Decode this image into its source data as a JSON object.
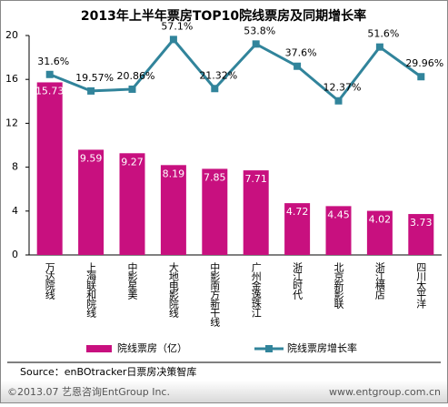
{
  "chart_data": {
    "type": "bar",
    "title": "2013年上半年票房TOP10院线票房及同期增长率",
    "categories": [
      "万达院线",
      "上海联和院线",
      "中影星美",
      "大地电影院线",
      "中影南方新干线",
      "广州金逸珠江",
      "浙江时代",
      "北京新影联",
      "浙江横店",
      "四川太平洋"
    ],
    "series": [
      {
        "name": "院线票房（亿）",
        "type": "bar",
        "color": "#c8107f",
        "values": [
          15.73,
          9.59,
          9.27,
          8.19,
          7.85,
          7.71,
          4.72,
          4.45,
          4.02,
          3.73
        ]
      },
      {
        "name": "院线票房增长率",
        "type": "line",
        "axis": "y2",
        "color": "#31849b",
        "values": [
          31.6,
          19.57,
          20.86,
          57.1,
          21.32,
          53.8,
          37.6,
          12.37,
          51.6,
          29.96
        ],
        "value_labels": [
          "31.6%",
          "19.57%",
          "20.86%",
          "57.1%",
          "21.32%",
          "53.8%",
          "37.6%",
          "12.37%",
          "51.6%",
          "29.96%"
        ]
      }
    ],
    "ylim": [
      0,
      20
    ],
    "yticks": [
      0,
      4,
      8,
      12,
      16,
      20
    ],
    "y2lim": [
      -100,
      60
    ],
    "source": "Source：enBOtracker日票房决策智库",
    "footer_left": "©2013.07 艺恩咨询EntGroup Inc.",
    "footer_right": "www.entgroup.com.cn"
  }
}
